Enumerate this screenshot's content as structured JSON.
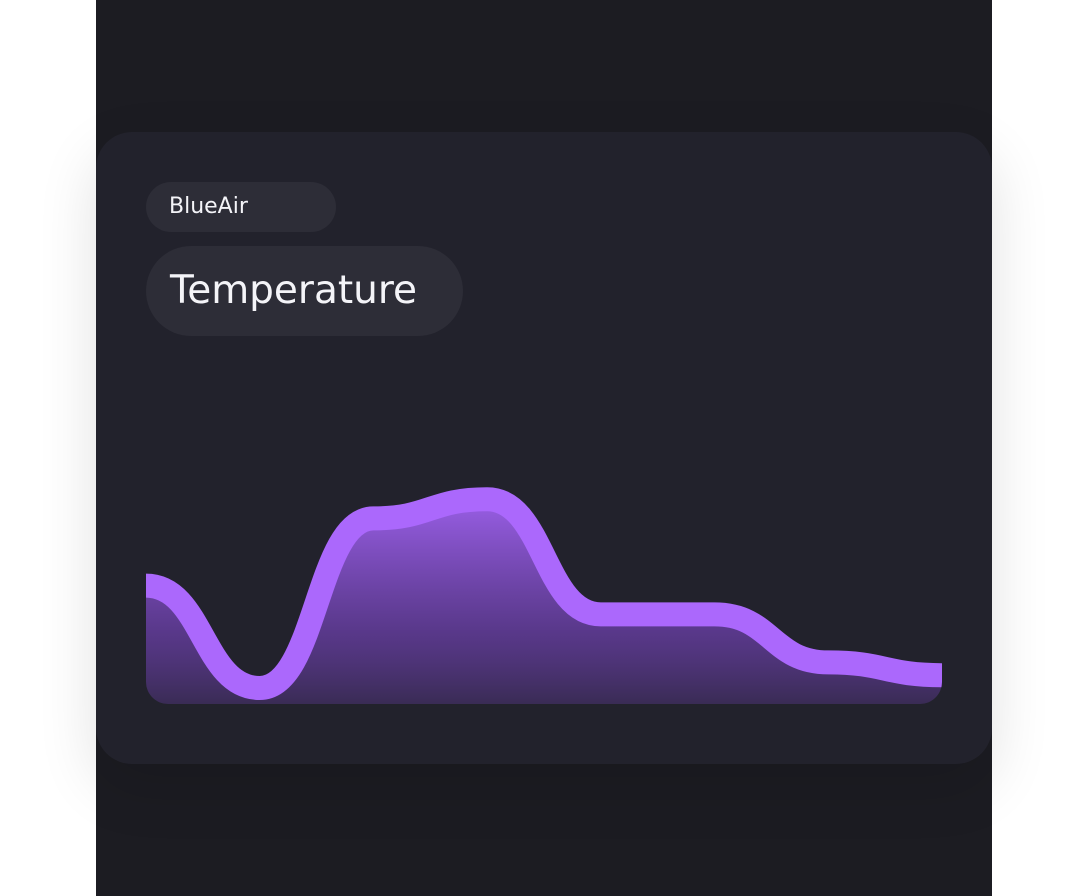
{
  "device": {
    "name": "BlueAir"
  },
  "metric": {
    "title": "Temperature"
  },
  "chart_data": {
    "type": "area",
    "title": "Temperature",
    "xlabel": "",
    "ylabel": "",
    "grid": false,
    "x": [
      0,
      1,
      2,
      3,
      4,
      5,
      6,
      7
    ],
    "values": [
      37,
      5,
      58,
      64,
      28,
      28,
      13,
      9
    ],
    "ylim": [
      0,
      100
    ],
    "colors": {
      "line": "#ab68fc",
      "fill_top": "#a062f0",
      "fill_bottom": "#22222c"
    }
  }
}
